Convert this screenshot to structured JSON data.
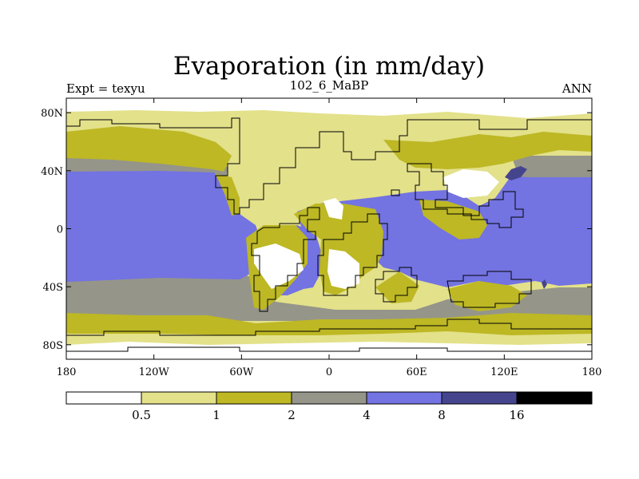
{
  "title": "Evaporation (in mm/day)",
  "subtitle": "102_6_MaBP",
  "left_label": "Expt = texyu",
  "right_label": "ANN",
  "map": {
    "lon_range": [
      -180,
      180
    ],
    "lat_range": [
      -90,
      90
    ],
    "x_ticks": [
      {
        "value": -180,
        "label": "180"
      },
      {
        "value": -120,
        "label": "120W"
      },
      {
        "value": -60,
        "label": "60W"
      },
      {
        "value": 0,
        "label": "0"
      },
      {
        "value": 60,
        "label": "60E"
      },
      {
        "value": 120,
        "label": "120E"
      },
      {
        "value": 180,
        "label": "180"
      }
    ],
    "y_ticks": [
      {
        "value": 80,
        "label": "80N"
      },
      {
        "value": 40,
        "label": "40N"
      },
      {
        "value": 0,
        "label": "0"
      },
      {
        "value": -40,
        "label": "40S"
      },
      {
        "value": -80,
        "label": "80S"
      }
    ]
  },
  "colorbar": {
    "levels": [
      "0.5",
      "1",
      "2",
      "4",
      "8",
      "16"
    ],
    "colors": [
      "#ffffff",
      "#e3e18a",
      "#bdb824",
      "#95958a",
      "#7373e2",
      "#45458e",
      "#000000"
    ]
  }
}
